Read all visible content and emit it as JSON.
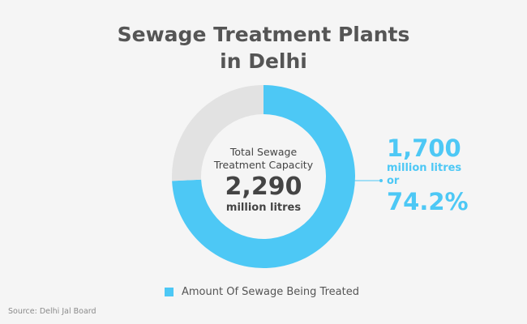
{
  "title_lines": [
    "Sewage Treatment Plants",
    "in Delhi"
  ],
  "center": {
    "caption_line1": "Total Sewage",
    "caption_line2": "Treatment Capacity",
    "value": "2,290",
    "unit": "million litres"
  },
  "callout": {
    "value": "1,700",
    "unit": "million litres",
    "connector": "or",
    "percent": "74.2%"
  },
  "legend": {
    "label": "Amount Of Sewage Being Treated"
  },
  "source": "Source: Delhi Jal Board",
  "colors": {
    "treated": "#4dc8f5",
    "remaining": "#e2e2e2",
    "text": "#555555",
    "background": "#f5f5f5"
  },
  "chart_data": {
    "type": "pie",
    "style": "donut",
    "total": 2290,
    "series": [
      {
        "name": "Amount Of Sewage Being Treated",
        "value": 1700,
        "percent": 74.2
      },
      {
        "value": 590,
        "percent": 25.8
      }
    ],
    "legend_placement": "bottom"
  }
}
